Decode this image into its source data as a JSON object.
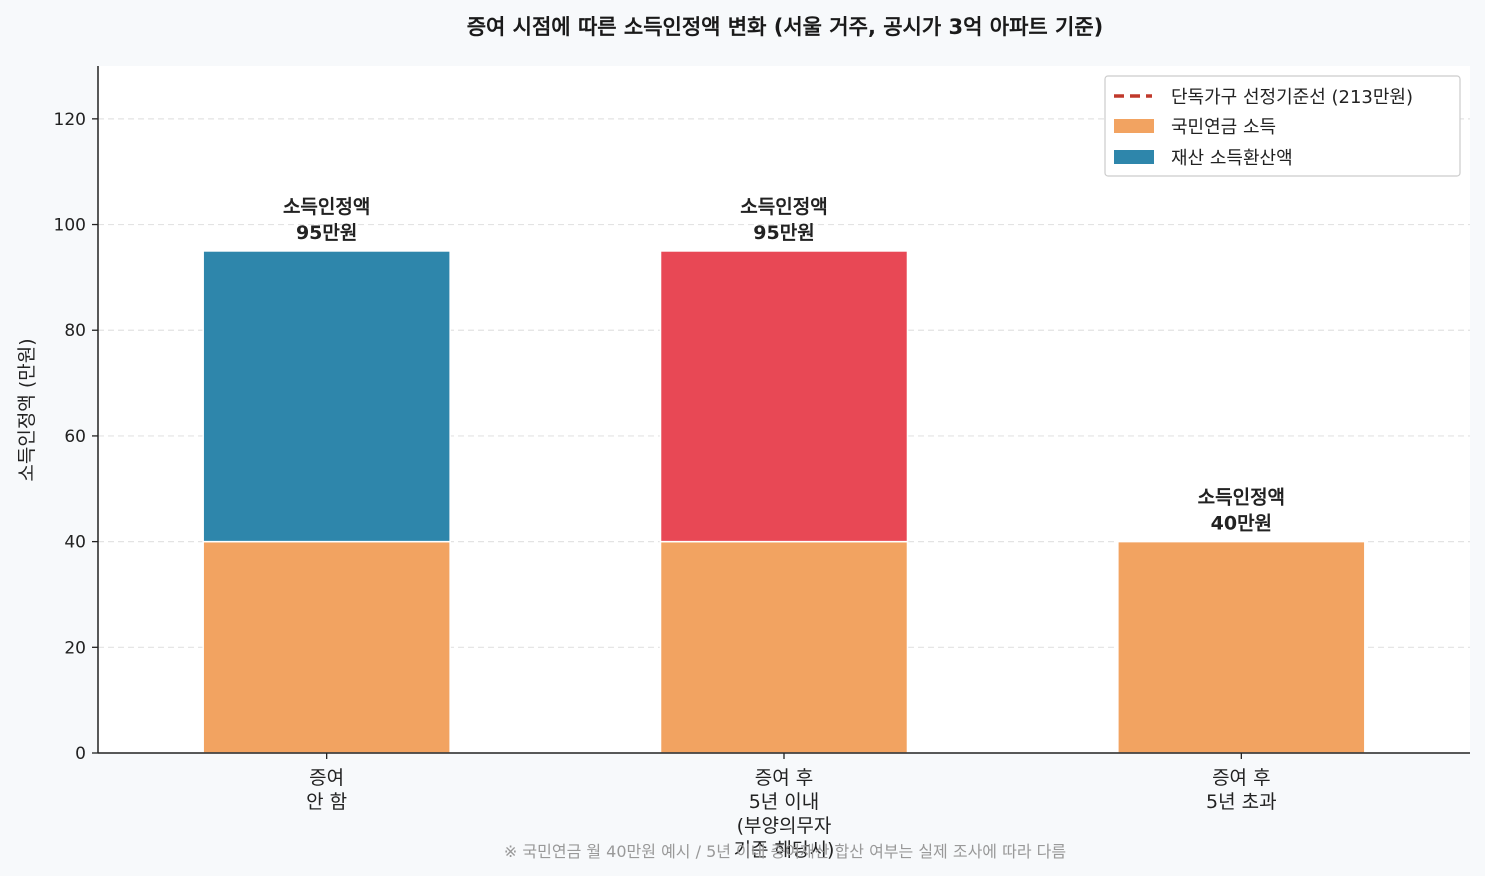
{
  "chart_data": {
    "type": "bar",
    "stacked": true,
    "title": "증여 시점에 따른 소득인정액 변화 (서울 거주, 공시가 3억 아파트 기준)",
    "ylabel": "소득인정액 (만원)",
    "xlabel": "",
    "ylim": [
      0,
      130
    ],
    "yticks": [
      0,
      20,
      40,
      60,
      80,
      100,
      120
    ],
    "grid": "y-dashed",
    "legend_position": "top-right",
    "categories": [
      [
        "증여",
        "안 함"
      ],
      [
        "증여 후",
        "5년 이내",
        "(부양의무자",
        "기준 해당시)"
      ],
      [
        "증여 후",
        "5년 초과"
      ]
    ],
    "series": [
      {
        "name": "국민연금 소득",
        "color": "#f2a361",
        "values": [
          40,
          40,
          40
        ]
      },
      {
        "name": "재산 소득환산액",
        "color": "#2e86ab",
        "values": [
          55,
          55,
          0
        ],
        "override_colors": [
          null,
          "#e84855",
          null
        ]
      }
    ],
    "reference_line": {
      "name": "단독가구 선정기준선 (213만원)",
      "value": 213,
      "color": "#c0392b",
      "style": "dashed"
    },
    "data_labels": [
      [
        "소득인정액",
        "95만원"
      ],
      [
        "소득인정액",
        "95만원"
      ],
      [
        "소득인정액",
        "40만원"
      ]
    ],
    "footnote": "※ 국민연금 월 40만원 예시 / 5년 이내 증여재산 합산 여부는 실제 조사에 따라 다름"
  }
}
